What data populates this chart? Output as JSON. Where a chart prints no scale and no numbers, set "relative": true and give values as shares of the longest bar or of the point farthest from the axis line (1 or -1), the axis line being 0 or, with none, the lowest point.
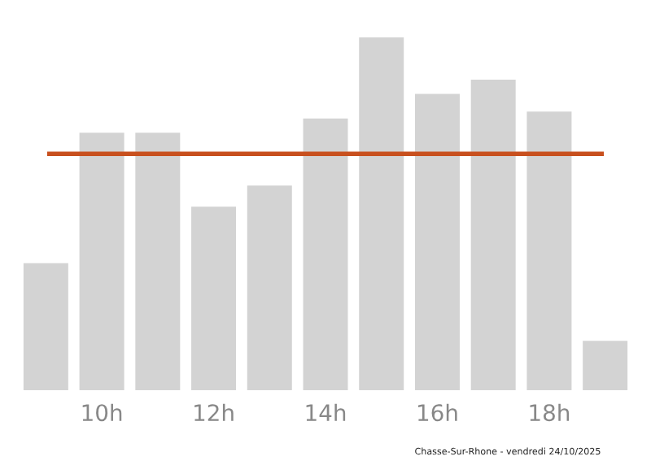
{
  "chart_data": {
    "type": "bar",
    "relative": true,
    "categories": [
      null,
      "10h",
      null,
      "12h",
      null,
      "14h",
      null,
      "16h",
      null,
      "18h",
      null
    ],
    "values": [
      0.36,
      0.73,
      0.73,
      0.52,
      0.58,
      0.77,
      1,
      0.84,
      0.88,
      0.79,
      0.14
    ],
    "color": "#d3d3d3",
    "ref_lines": [
      {
        "axis": "y",
        "value": 0.67,
        "color": "#c8501e",
        "line_style": "solid"
      }
    ],
    "annotations": [
      "Chasse-Sur-Rhone - vendredi 24/10/2025"
    ],
    "grid": false,
    "legend": false
  }
}
